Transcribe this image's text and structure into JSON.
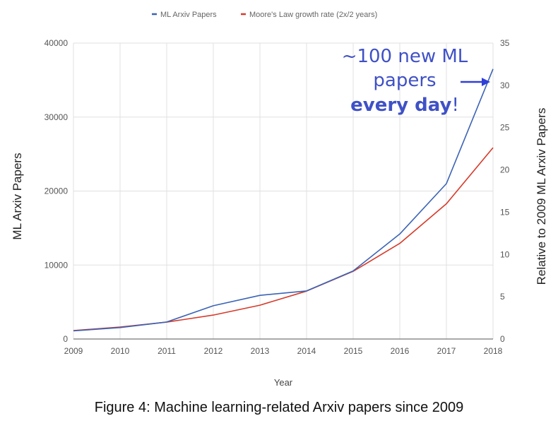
{
  "chart_data": {
    "type": "line",
    "legend": {
      "placement": "top-center",
      "items": [
        {
          "name": "ML Arxiv Papers",
          "color": "#3b63b5"
        },
        {
          "name": "Moore's Law growth rate (2x/2 years)",
          "color": "#d63a2a"
        }
      ]
    },
    "categories": [
      "2009",
      "2010",
      "2011",
      "2012",
      "2013",
      "2014",
      "2015",
      "2016",
      "2017",
      "2018"
    ],
    "series": [
      {
        "name": "ML Arxiv Papers",
        "axis": "left",
        "color": "#3b63b5",
        "values": [
          1100,
          1550,
          2300,
          4500,
          5900,
          6500,
          9200,
          14200,
          21000,
          36500
        ]
      },
      {
        "name": "Moore's Law growth rate (2x/2 years)",
        "axis": "right",
        "color": "#d63a2a",
        "values": [
          1,
          1.41,
          2,
          2.83,
          4,
          5.66,
          8,
          11.31,
          16,
          22.63
        ]
      }
    ],
    "xlabel": "Year",
    "ylabel_left": "ML Arxiv Papers",
    "ylabel_right": "Relative to 2009 ML Arxiv Papers",
    "ylim_left": [
      0,
      40000
    ],
    "ylim_right": [
      0,
      35
    ],
    "yticks_left": [
      "0",
      "10000",
      "20000",
      "30000",
      "40000"
    ],
    "yticks_right": [
      "0",
      "5",
      "10",
      "15",
      "20",
      "25",
      "30",
      "35"
    ],
    "grid": true,
    "annotation": {
      "line1": "~100 new ML",
      "line2": "papers",
      "line3_bold": "every day",
      "line3_end": "!",
      "color": "#3f51c6"
    }
  },
  "caption": "Figure 4: Machine learning-related Arxiv papers since 2009"
}
